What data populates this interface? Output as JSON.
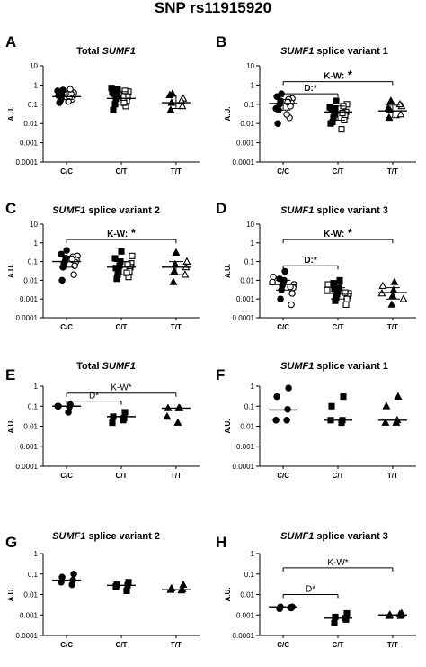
{
  "title": "SNP rs11915920",
  "y_tick_labels": [
    "10",
    "1",
    "0.1",
    "0.01",
    "0.001",
    "0.0001"
  ],
  "chart_data": [
    {
      "panel": "A",
      "type": "scatter",
      "title_parts": [
        {
          "t": "Total ",
          "i": false
        },
        {
          "t": "SUMF1",
          "i": true
        }
      ],
      "ylabel": "A.U.",
      "yscale": "log",
      "ylim": [
        0.0001,
        10
      ],
      "categories": [
        "C/C",
        "C/T",
        "T/T"
      ],
      "markers": [
        "mixed-circle",
        "mixed-square",
        "mixed-triangle"
      ],
      "points": [
        [
          0.55,
          0.4,
          0.3,
          0.25,
          0.2,
          0.18,
          0.15,
          0.35,
          0.12,
          0.6,
          0.28,
          0.22,
          0.5,
          0.14
        ],
        [
          0.6,
          0.45,
          0.3,
          0.25,
          0.2,
          0.15,
          0.1,
          0.08,
          0.35,
          0.5,
          0.05,
          0.12,
          0.4,
          0.22,
          0.7
        ],
        [
          0.35,
          0.2,
          0.12,
          0.08,
          0.05,
          0.15,
          0.3
        ]
      ],
      "medians": [
        0.25,
        0.2,
        0.12
      ],
      "errors": [
        [
          0.18,
          0.45
        ],
        [
          0.1,
          0.45
        ],
        [
          0.06,
          0.3
        ]
      ],
      "annotations": []
    },
    {
      "panel": "B",
      "type": "scatter",
      "title_parts": [
        {
          "t": "SUMF1",
          "i": true
        },
        {
          "t": " splice variant 1",
          "i": false
        }
      ],
      "ylabel": "A.U.",
      "yscale": "log",
      "ylim": [
        0.0001,
        10
      ],
      "categories": [
        "C/C",
        "C/T",
        "T/T"
      ],
      "markers": [
        "mixed-circle",
        "mixed-square",
        "mixed-triangle"
      ],
      "points": [
        [
          0.35,
          0.2,
          0.15,
          0.12,
          0.1,
          0.08,
          0.05,
          0.02,
          0.01,
          0.18,
          0.25,
          0.13,
          0.06,
          0.03
        ],
        [
          0.15,
          0.1,
          0.06,
          0.04,
          0.03,
          0.025,
          0.02,
          0.015,
          0.012,
          0.08,
          0.05,
          0.035,
          0.01,
          0.005,
          0.07
        ],
        [
          0.15,
          0.08,
          0.05,
          0.03,
          0.02,
          0.1,
          0.06
        ]
      ],
      "medians": [
        0.11,
        0.04,
        0.045
      ],
      "errors": [
        [
          0.05,
          0.18
        ],
        [
          0.015,
          0.08
        ],
        [
          0.02,
          0.09
        ]
      ],
      "annotations": [
        {
          "label": "K-W:",
          "star": "*",
          "from": 0,
          "to": 2,
          "y": 1.5
        },
        {
          "label": "D:*",
          "star": "",
          "from": 0,
          "to": 1,
          "y": 0.35
        }
      ]
    },
    {
      "panel": "C",
      "type": "scatter",
      "title_parts": [
        {
          "t": "SUMF1",
          "i": true
        },
        {
          "t": " splice variant 2",
          "i": false
        }
      ],
      "ylabel": "A.U.",
      "yscale": "log",
      "ylim": [
        0.0001,
        10
      ],
      "categories": [
        "C/C",
        "C/T",
        "T/T"
      ],
      "markers": [
        "mixed-circle",
        "mixed-square",
        "mixed-triangle"
      ],
      "points": [
        [
          0.4,
          0.2,
          0.15,
          0.12,
          0.1,
          0.09,
          0.08,
          0.06,
          0.05,
          0.02,
          0.01,
          0.18,
          0.25,
          0.13
        ],
        [
          0.35,
          0.2,
          0.1,
          0.08,
          0.06,
          0.05,
          0.04,
          0.03,
          0.02,
          0.015,
          0.012,
          0.07,
          0.045,
          0.025,
          0.15
        ],
        [
          0.3,
          0.1,
          0.07,
          0.05,
          0.03,
          0.02,
          0.008
        ]
      ],
      "medians": [
        0.1,
        0.05,
        0.05
      ],
      "errors": [
        [
          0.05,
          0.2
        ],
        [
          0.02,
          0.1
        ],
        [
          0.02,
          0.1
        ]
      ],
      "annotations": [
        {
          "label": "K-W:",
          "star": "*",
          "from": 0,
          "to": 2,
          "y": 1.5
        }
      ]
    },
    {
      "panel": "D",
      "type": "scatter",
      "title_parts": [
        {
          "t": "SUMF1",
          "i": true
        },
        {
          "t": " splice variant 3",
          "i": false
        }
      ],
      "ylabel": "A.U.",
      "yscale": "log",
      "ylim": [
        0.0001,
        10
      ],
      "categories": [
        "C/C",
        "C/T",
        "T/T"
      ],
      "markers": [
        "mixed-circle",
        "mixed-square",
        "mixed-triangle"
      ],
      "points": [
        [
          0.03,
          0.015,
          0.01,
          0.008,
          0.007,
          0.006,
          0.005,
          0.004,
          0.003,
          0.002,
          0.001,
          0.0005,
          0.012,
          0.0045
        ],
        [
          0.01,
          0.006,
          0.004,
          0.003,
          0.0025,
          0.002,
          0.0018,
          0.0015,
          0.0012,
          0.001,
          0.0008,
          0.0005,
          0.0035,
          0.0022,
          0.007
        ],
        [
          0.008,
          0.005,
          0.003,
          0.002,
          0.0015,
          0.001,
          0.0005
        ]
      ],
      "medians": [
        0.006,
        0.002,
        0.0022
      ],
      "errors": [
        [
          0.003,
          0.01
        ],
        [
          0.001,
          0.004
        ],
        [
          0.001,
          0.004
        ]
      ],
      "annotations": [
        {
          "label": "K-W:",
          "star": "*",
          "from": 0,
          "to": 2,
          "y": 1.5
        },
        {
          "label": "D:*",
          "star": "",
          "from": 0,
          "to": 1,
          "y": 0.06
        }
      ]
    },
    {
      "panel": "E",
      "type": "scatter",
      "title_parts": [
        {
          "t": "Total ",
          "i": false
        },
        {
          "t": "SUMF1",
          "i": true
        }
      ],
      "ylabel": "A.U.",
      "yscale": "log",
      "ylim": [
        0.0001,
        1
      ],
      "categories": [
        "C/C",
        "C/T",
        "T/T"
      ],
      "markers": [
        "circle",
        "square",
        "triangle"
      ],
      "points": [
        [
          0.12,
          0.1,
          0.09,
          0.1,
          0.05
        ],
        [
          0.05,
          0.03,
          0.025,
          0.015,
          0.02
        ],
        [
          0.08,
          0.08,
          0.08,
          0.03,
          0.015
        ]
      ],
      "medians": [
        0.1,
        0.03,
        0.08
      ],
      "errors": [],
      "annotations": [
        {
          "label": "K-W*",
          "star": "",
          "from": 0,
          "to": 2,
          "y": 0.45
        },
        {
          "label": "D*",
          "star": "",
          "from": 0,
          "to": 1,
          "y": 0.18
        }
      ]
    },
    {
      "panel": "F",
      "type": "scatter",
      "title_parts": [
        {
          "t": "SUMF1",
          "i": true
        },
        {
          "t": " splice variant 1",
          "i": false
        }
      ],
      "ylabel": "A.U.",
      "yscale": "log",
      "ylim": [
        0.0001,
        1
      ],
      "categories": [
        "C/C",
        "C/T",
        "T/T"
      ],
      "markers": [
        "circle",
        "square",
        "triangle"
      ],
      "points": [
        [
          0.8,
          0.3,
          0.07,
          0.02,
          0.02
        ],
        [
          0.3,
          0.1,
          0.02,
          0.02,
          0.015
        ],
        [
          0.3,
          0.1,
          0.02,
          0.015,
          0.015
        ]
      ],
      "medians": [
        0.065,
        0.02,
        0.02
      ],
      "errors": [],
      "annotations": []
    },
    {
      "panel": "G",
      "type": "scatter",
      "title_parts": [
        {
          "t": "SUMF1",
          "i": true
        },
        {
          "t": " splice variant 2",
          "i": false
        }
      ],
      "ylabel": "A.U.",
      "yscale": "log",
      "ylim": [
        0.0001,
        1
      ],
      "categories": [
        "C/C",
        "C/T",
        "T/T"
      ],
      "markers": [
        "circle",
        "square",
        "triangle"
      ],
      "points": [
        [
          0.1,
          0.07,
          0.05,
          0.04,
          0.03
        ],
        [
          0.04,
          0.03,
          0.028,
          0.025,
          0.015
        ],
        [
          0.03,
          0.02,
          0.018,
          0.017,
          0.016
        ]
      ],
      "medians": [
        0.05,
        0.028,
        0.017
      ],
      "errors": [],
      "annotations": []
    },
    {
      "panel": "H",
      "type": "scatter",
      "title_parts": [
        {
          "t": "SUMF1",
          "i": true
        },
        {
          "t": " splice variant 3",
          "i": false
        }
      ],
      "ylabel": "A.U.",
      "yscale": "log",
      "ylim": [
        0.0001,
        1
      ],
      "categories": [
        "C/C",
        "C/T",
        "T/T"
      ],
      "markers": [
        "circle",
        "square",
        "triangle"
      ],
      "points": [
        [
          0.0025,
          0.0025,
          0.0022,
          0.002,
          0.0023
        ],
        [
          0.0012,
          0.0008,
          0.0006,
          0.0004,
          0.0007
        ],
        [
          0.0012,
          0.001,
          0.0009,
          0.0009,
          0.0011
        ]
      ],
      "medians": [
        0.0025,
        0.0007,
        0.001
      ],
      "errors": [],
      "annotations": [
        {
          "label": "K-W*",
          "star": "",
          "from": 0,
          "to": 2,
          "y": 0.2
        },
        {
          "label": "D*",
          "star": "",
          "from": 0,
          "to": 1,
          "y": 0.01
        }
      ]
    }
  ]
}
